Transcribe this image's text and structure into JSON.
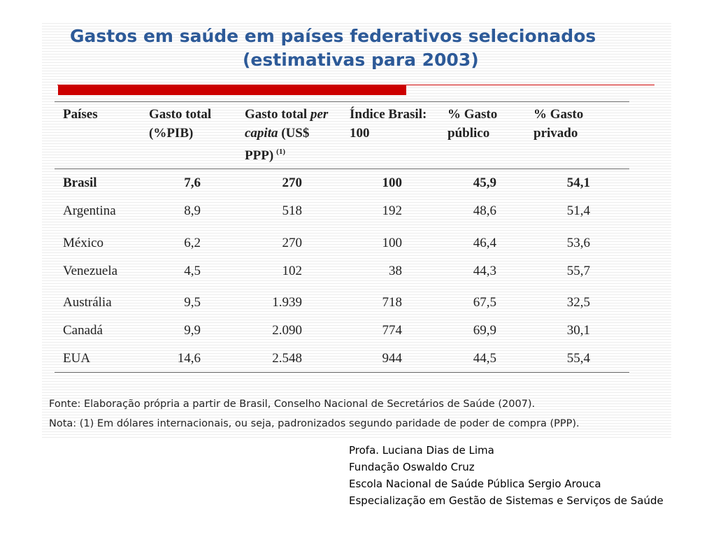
{
  "title": {
    "line1": "Gastos em saúde em países federativos selecionados",
    "line2": "(estimativas para 2003)"
  },
  "colors": {
    "title": "#2d5a98",
    "accent_bar": "#cc0000",
    "text": "#222222"
  },
  "table": {
    "headers": {
      "paises": "Países",
      "gasto_total_l1": "Gasto total",
      "gasto_total_l2": "(%PIB)",
      "per_capita_l1a": "Gasto total ",
      "per_capita_l1b": "per",
      "per_capita_l2a": "capita",
      "per_capita_l2b": " (US$",
      "per_capita_l3": "PPP)",
      "per_capita_note": "(1)",
      "indice_l1": "Índice Brasil:",
      "indice_l2": "100",
      "publico_l1": "% Gasto",
      "publico_l2": "público",
      "privado_l1": "% Gasto",
      "privado_l2": "privado"
    },
    "rows": [
      {
        "pais": "Brasil",
        "pib": "7,6",
        "per_capita": "270",
        "indice": "100",
        "publico": "45,9",
        "privado": "54,1"
      },
      {
        "pais": "Argentina",
        "pib": "8,9",
        "per_capita": "518",
        "indice": "192",
        "publico": "48,6",
        "privado": "51,4"
      },
      {
        "pais": "México",
        "pib": "6,2",
        "per_capita": "270",
        "indice": "100",
        "publico": "46,4",
        "privado": "53,6"
      },
      {
        "pais": "Venezuela",
        "pib": "4,5",
        "per_capita": "102",
        "indice": "38",
        "publico": "44,3",
        "privado": "55,7"
      },
      {
        "pais": "Austrália",
        "pib": "9,5",
        "per_capita": "1.939",
        "indice": "718",
        "publico": "67,5",
        "privado": "32,5"
      },
      {
        "pais": "Canadá",
        "pib": "9,9",
        "per_capita": "2.090",
        "indice": "774",
        "publico": "69,9",
        "privado": "30,1"
      },
      {
        "pais": "EUA",
        "pib": "14,6",
        "per_capita": "2.548",
        "indice": "944",
        "publico": "44,5",
        "privado": "55,4"
      }
    ]
  },
  "notes": {
    "fonte": "Fonte: Elaboração própria a partir de Brasil, Conselho Nacional de Secretários de Saúde (2007).",
    "nota": "Nota: (1) Em dólares internacionais, ou seja, padronizados segundo paridade de poder de compra (PPP)."
  },
  "credits": {
    "line1": "Profa. Luciana Dias de Lima",
    "line2": "Fundação Oswaldo Cruz",
    "line3": "Escola Nacional de Saúde Pública Sergio Arouca",
    "line4": "Especialização em Gestão de Sistemas e Serviços de Saúde"
  }
}
